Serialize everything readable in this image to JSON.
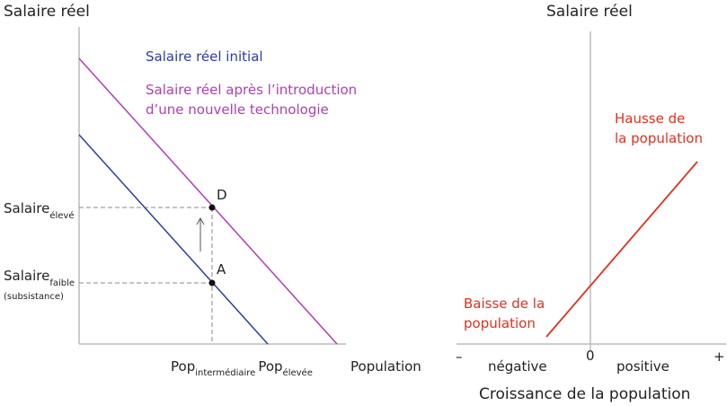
{
  "left_panel": {
    "y_axis_title": "Salaire réel",
    "x_axis_title": "Population",
    "legend": {
      "initial": "Salaire réel initial",
      "after": [
        "Salaire réel après l’introduction",
        "d’une nouvelle technologie"
      ]
    },
    "points": {
      "d": "D",
      "a": "A"
    },
    "y_labels": {
      "high": {
        "base": "Salaire",
        "sub": "élevé"
      },
      "low": {
        "base": "Salaire",
        "sub": "faible",
        "note": "(subsistance)"
      }
    },
    "x_labels": [
      {
        "base": "Pop",
        "sub": "intermédiaire"
      },
      {
        "base": "Pop",
        "sub": "élevée"
      }
    ]
  },
  "right_panel": {
    "y_axis_title": "Salaire réel",
    "x_axis_title": "Croissance de la population",
    "rise_label": [
      "Hausse de",
      "la population"
    ],
    "fall_label": [
      "Baisse de la",
      "population"
    ],
    "axis_marks": {
      "minus": "–",
      "zero": "0",
      "plus": "+",
      "negative": "négative",
      "positive": "positive"
    }
  }
}
